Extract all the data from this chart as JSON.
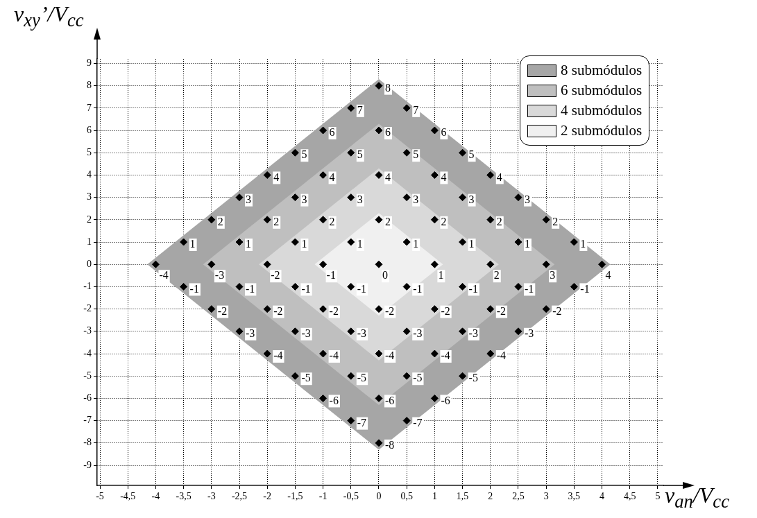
{
  "chart_data": {
    "type": "scatter",
    "xlabel": "v$_{an}$/V$_{cc}$",
    "ylabel": "v$_{xy}$’/V$_{cc}$",
    "xlim": [
      -5.05,
      5.1
    ],
    "ylim": [
      -9.9,
      9.2
    ],
    "xticks": [
      -5,
      {
        "value": -4.5,
        "label": "-4,5"
      },
      -4,
      {
        "value": -3.5,
        "label": "-3,5"
      },
      -3,
      {
        "value": -2.5,
        "label": "-2,5"
      },
      -2,
      {
        "value": -1.5,
        "label": "-1,5"
      },
      -1,
      {
        "value": -0.5,
        "label": "-0,5"
      },
      0,
      {
        "value": 0.5,
        "label": "0,5"
      },
      1,
      {
        "value": 1.5,
        "label": "1,5"
      },
      2,
      {
        "value": 2.5,
        "label": "2,5"
      },
      3,
      {
        "value": 3.5,
        "label": "3,5"
      },
      4,
      {
        "value": 4.5,
        "label": "4,5"
      },
      5
    ],
    "yticks": [
      -9,
      -8,
      -7,
      -6,
      -5,
      -4,
      -3,
      -2,
      -1,
      0,
      1,
      2,
      3,
      4,
      5,
      6,
      7,
      8,
      9
    ],
    "grid": true,
    "legend": "top right",
    "annotations": [
      {
        "text": "-4",
        "x": -4,
        "y": 0
      },
      {
        "text": "-3",
        "x": -3,
        "y": 0
      },
      {
        "text": "-2",
        "x": -2,
        "y": 0
      },
      {
        "text": "-1",
        "x": -1,
        "y": 0
      },
      {
        "text": "0",
        "x": 0,
        "y": 0
      },
      {
        "text": "1",
        "x": 1,
        "y": 0
      },
      {
        "text": "2",
        "x": 2,
        "y": 0
      },
      {
        "text": "3",
        "x": 3,
        "y": 0
      },
      {
        "text": "4",
        "x": 4,
        "y": 0
      }
    ],
    "series": [
      {
        "type": "area",
        "name": "8 submódulos",
        "color": "#a6a6a6",
        "x": [
          -4.15,
          0,
          4.15,
          0,
          -4.15
        ],
        "values": [
          0,
          8.3,
          0,
          -8.3,
          0
        ]
      },
      {
        "type": "area",
        "name": "6 submódulos",
        "color": "#bfbfbf",
        "x": [
          -3.15,
          0,
          3.15,
          0,
          -3.15
        ],
        "values": [
          0,
          6.3,
          0,
          -6.3,
          0
        ]
      },
      {
        "type": "area",
        "name": "4 submódulos",
        "color": "#d9d9d9",
        "x": [
          -2.15,
          0,
          2.15,
          0,
          -2.15
        ],
        "values": [
          0,
          4.3,
          0,
          -4.3,
          0
        ]
      },
      {
        "type": "area",
        "name": "2 submódulos",
        "color": "#f0f0f0",
        "x": [
          -1.15,
          0,
          1.15,
          0,
          -1.15
        ],
        "values": [
          0,
          2.3,
          0,
          -2.3,
          0
        ]
      },
      {
        "type": "scatter",
        "color": "#000000",
        "marker": "diamond",
        "x": [
          0,
          -0.5,
          0.5,
          -1,
          0,
          1,
          -1.5,
          -0.5,
          0.5,
          1.5,
          -2,
          -1,
          0,
          1,
          2,
          -2.5,
          -1.5,
          -0.5,
          0.5,
          1.5,
          2.5,
          -3,
          -2,
          -1,
          0,
          1,
          2,
          3,
          -3.5,
          -2.5,
          -1.5,
          -0.5,
          0.5,
          1.5,
          2.5,
          3.5,
          -4,
          -3,
          -2,
          -1,
          0,
          1,
          2,
          3,
          4,
          -3.5,
          -2.5,
          -1.5,
          -0.5,
          0.5,
          1.5,
          2.5,
          3.5,
          -3,
          -2,
          -1,
          0,
          1,
          2,
          3,
          -2.5,
          -1.5,
          -0.5,
          0.5,
          1.5,
          2.5,
          -2,
          -1,
          0,
          1,
          2,
          -1.5,
          -0.5,
          0.5,
          1.5,
          -1,
          0,
          1,
          -0.5,
          0.5,
          0
        ],
        "values": [
          8,
          7,
          7,
          6,
          6,
          6,
          5,
          5,
          5,
          5,
          4,
          4,
          4,
          4,
          4,
          3,
          3,
          3,
          3,
          3,
          3,
          2,
          2,
          2,
          2,
          2,
          2,
          2,
          1,
          1,
          1,
          1,
          1,
          1,
          1,
          1,
          0,
          0,
          0,
          0,
          0,
          0,
          0,
          0,
          0,
          -1,
          -1,
          -1,
          -1,
          -1,
          -1,
          -1,
          -1,
          -2,
          -2,
          -2,
          -2,
          -2,
          -2,
          -2,
          -3,
          -3,
          -3,
          -3,
          -3,
          -3,
          -4,
          -4,
          -4,
          -4,
          -4,
          -5,
          -5,
          -5,
          -5,
          -6,
          -6,
          -6,
          -7,
          -7,
          -8
        ],
        "value_labels": [
          "8",
          "7",
          "7",
          "6",
          "6",
          "6",
          "5",
          "5",
          "5",
          "5",
          "4",
          "4",
          "4",
          "4",
          "4",
          "3",
          "3",
          "3",
          "3",
          "3",
          "3",
          "2",
          "2",
          "2",
          "2",
          "2",
          "2",
          "2",
          "1",
          "1",
          "1",
          "1",
          "1",
          "1",
          "1",
          "1",
          null,
          null,
          null,
          null,
          null,
          null,
          null,
          null,
          null,
          "-1",
          "-1",
          "-1",
          "-1",
          "-1",
          "-1",
          "-1",
          "-1",
          "-2",
          "-2",
          "-2",
          "-2",
          "-2",
          "-2",
          "-2",
          "-3",
          "-3",
          "-3",
          "-3",
          "-3",
          "-3",
          "-4",
          "-4",
          "-4",
          "-4",
          "-4",
          "-5",
          "-5",
          "-5",
          "-5",
          "-6",
          "-6",
          "-6",
          "-7",
          "-7",
          "-8"
        ]
      }
    ]
  }
}
